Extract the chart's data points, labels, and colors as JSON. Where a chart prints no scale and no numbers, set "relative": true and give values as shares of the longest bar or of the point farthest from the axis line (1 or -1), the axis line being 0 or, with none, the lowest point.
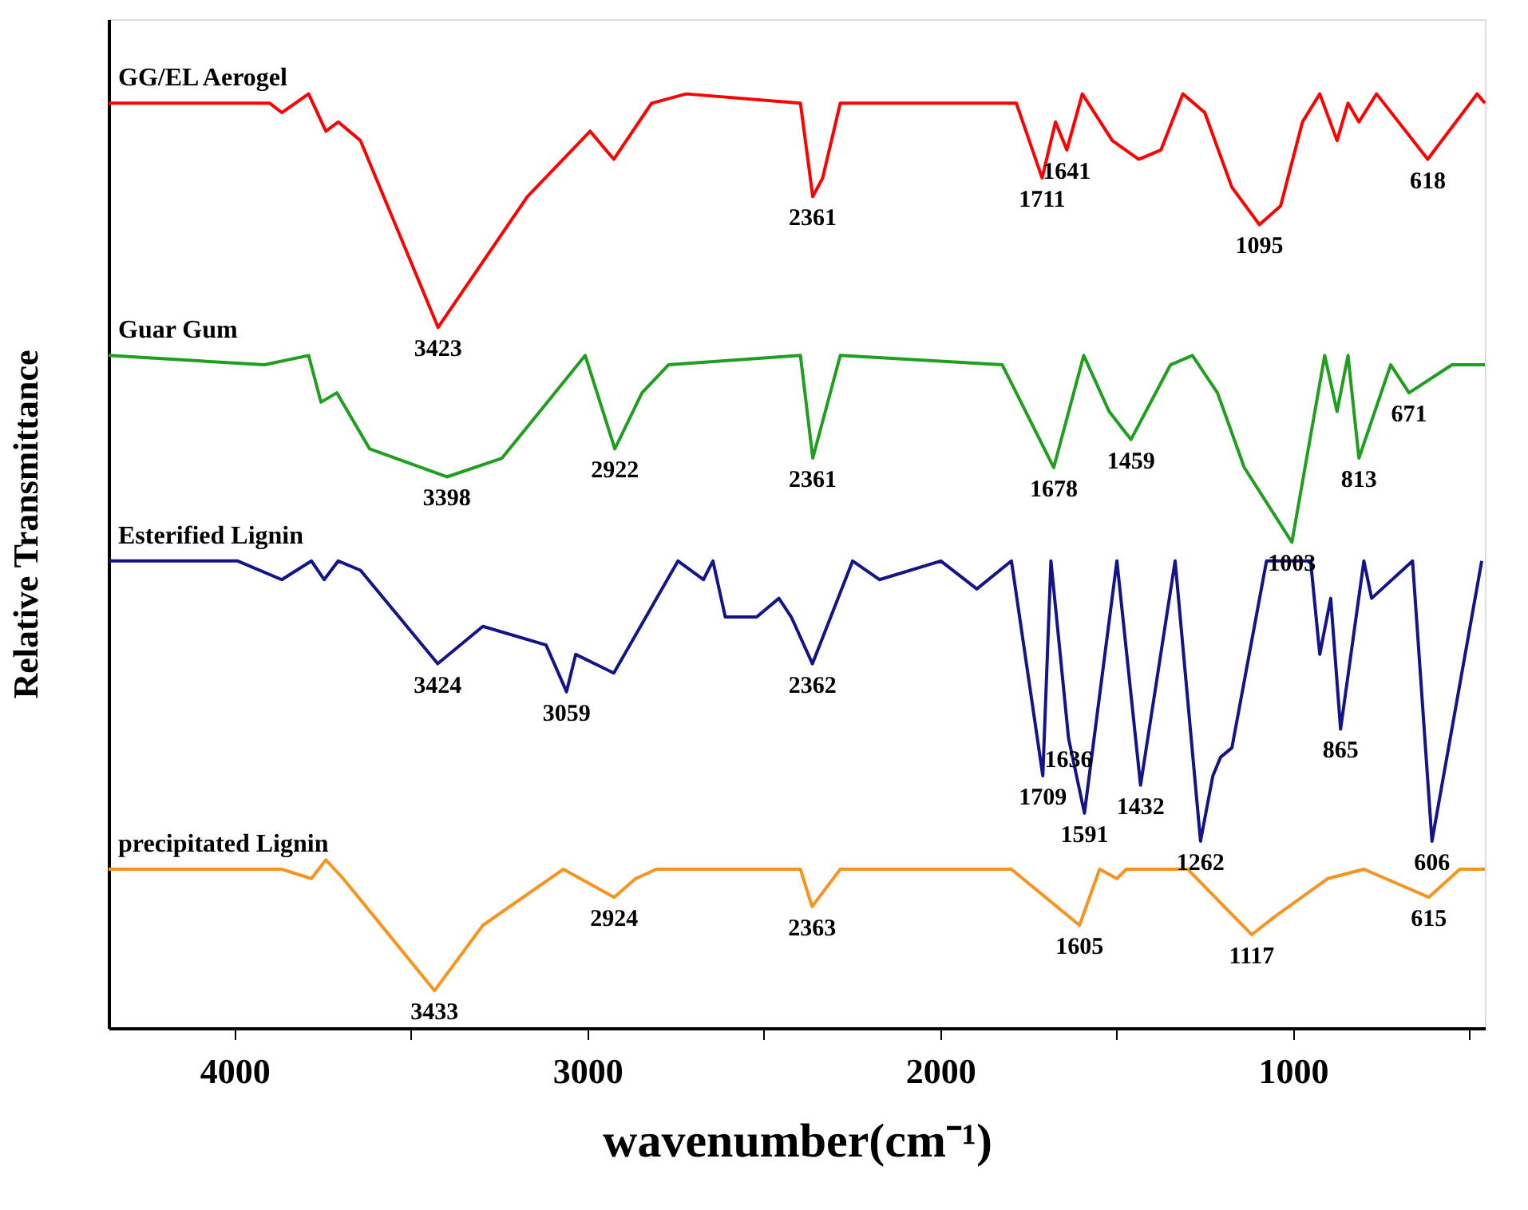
{
  "chart_data": {
    "type": "line",
    "relative": true,
    "xlabel": "wavenumber(cm⁻¹)",
    "ylabel": "Relative Transmittance",
    "xlim": [
      4357,
      456
    ],
    "xticks": [
      4000,
      {
        "value": 3500,
        "label": null
      },
      3000,
      {
        "value": 2500,
        "label": null
      },
      2000,
      {
        "value": 1500,
        "label": null
      },
      1000,
      {
        "value": 500,
        "label": null
      }
    ],
    "tick_labels": "x",
    "grid": false,
    "legend": false,
    "marker": "none",
    "line_style": "solid",
    "series": [
      {
        "name": "GG/EL Aerogel",
        "color": "#ff0000",
        "x": [
          4357,
          3900,
          3866,
          3790,
          3741,
          3706,
          3643,
          3423,
          3170,
          2992,
          2925,
          2818,
          2720,
          2396,
          2361,
          2333,
          2283,
          1784,
          1711,
          1673,
          1641,
          1597,
          1512,
          1437,
          1374,
          1312,
          1250,
          1173,
          1095,
          1035,
          973,
          924,
          875,
          844,
          813,
          763,
          618,
          478,
          456
        ],
        "values": [
          0.99,
          0.99,
          0.98,
          1.0,
          0.96,
          0.97,
          0.95,
          0.75,
          0.89,
          0.96,
          0.93,
          0.99,
          1.0,
          0.99,
          0.89,
          0.91,
          0.99,
          0.99,
          0.91,
          0.97,
          0.94,
          1.0,
          0.95,
          0.93,
          0.94,
          1.0,
          0.98,
          0.9,
          0.86,
          0.88,
          0.97,
          1.0,
          0.95,
          0.99,
          0.97,
          1.0,
          0.93,
          1.0,
          0.99
        ]
      },
      {
        "name": "Guar Gum",
        "color": "#1f9e1f",
        "x": [
          4357,
          3915,
          3790,
          3755,
          3710,
          3617,
          3398,
          3242,
          3006,
          2922,
          2845,
          2770,
          2396,
          2361,
          2283,
          1824,
          1678,
          1593,
          1521,
          1459,
          1347,
          1285,
          1214,
          1138,
          1003,
          910,
          875,
          844,
          813,
          723,
          671,
          549,
          456
        ],
        "values": [
          0.72,
          0.71,
          0.72,
          0.67,
          0.68,
          0.62,
          0.59,
          0.61,
          0.72,
          0.62,
          0.68,
          0.71,
          0.72,
          0.61,
          0.72,
          0.71,
          0.6,
          0.72,
          0.66,
          0.63,
          0.71,
          0.72,
          0.68,
          0.6,
          0.52,
          0.72,
          0.66,
          0.72,
          0.61,
          0.71,
          0.68,
          0.71,
          0.71
        ]
      },
      {
        "name": "Esterified Lignin",
        "color": "#141489",
        "x": [
          4357,
          3991,
          3866,
          3782,
          3746,
          3706,
          3643,
          3424,
          3296,
          3117,
          3059,
          3033,
          2925,
          2743,
          2671,
          2644,
          2609,
          2520,
          2457,
          2422,
          2362,
          2248,
          2172,
          1998,
          1896,
          1798,
          1709,
          1686,
          1636,
          1591,
          1499,
          1432,
          1334,
          1262,
          1227,
          1205,
          1173,
          1075,
          1013,
          950,
          924,
          893,
          865,
          799,
          777,
          661,
          606,
          465
        ],
        "values": [
          0.5,
          0.5,
          0.48,
          0.5,
          0.48,
          0.5,
          0.49,
          0.39,
          0.43,
          0.41,
          0.36,
          0.4,
          0.38,
          0.5,
          0.48,
          0.5,
          0.44,
          0.44,
          0.46,
          0.44,
          0.39,
          0.5,
          0.48,
          0.5,
          0.47,
          0.5,
          0.27,
          0.5,
          0.31,
          0.23,
          0.5,
          0.26,
          0.5,
          0.2,
          0.27,
          0.29,
          0.3,
          0.5,
          0.5,
          0.5,
          0.4,
          0.46,
          0.32,
          0.5,
          0.46,
          0.5,
          0.2,
          0.5
        ]
      },
      {
        "name": "precipitated Lignin",
        "color": "#f7931e",
        "x": [
          4357,
          3866,
          3782,
          3741,
          3692,
          3433,
          3296,
          3068,
          2924,
          2863,
          2804,
          2396,
          2363,
          2283,
          1798,
          1605,
          1548,
          1499,
          1472,
          1298,
          1117,
          1049,
          901,
          799,
          615,
          527,
          456
        ],
        "values": [
          0.17,
          0.17,
          0.16,
          0.18,
          0.16,
          0.04,
          0.11,
          0.17,
          0.14,
          0.16,
          0.17,
          0.17,
          0.13,
          0.17,
          0.17,
          0.11,
          0.17,
          0.16,
          0.17,
          0.17,
          0.1,
          0.12,
          0.16,
          0.17,
          0.14,
          0.17,
          0.17
        ]
      }
    ],
    "annotations": [
      {
        "text": "3423",
        "x": 3423,
        "y": 0.75
      },
      {
        "text": "2361",
        "x": 2361,
        "y": 0.89
      },
      {
        "text": "1711",
        "x": 1711,
        "y": 0.91
      },
      {
        "text": "1641",
        "x": 1641,
        "y": 0.94
      },
      {
        "text": "1095",
        "x": 1095,
        "y": 0.86
      },
      {
        "text": "618",
        "x": 618,
        "y": 0.93
      },
      {
        "text": "3398",
        "x": 3398,
        "y": 0.59
      },
      {
        "text": "2922",
        "x": 2922,
        "y": 0.62
      },
      {
        "text": "2361",
        "x": 2361,
        "y": 0.61
      },
      {
        "text": "1678",
        "x": 1678,
        "y": 0.6
      },
      {
        "text": "1459",
        "x": 1459,
        "y": 0.63
      },
      {
        "text": "1003",
        "x": 1003,
        "y": 0.52
      },
      {
        "text": "813",
        "x": 813,
        "y": 0.61
      },
      {
        "text": "671",
        "x": 671,
        "y": 0.68
      },
      {
        "text": "3424",
        "x": 3424,
        "y": 0.39
      },
      {
        "text": "3059",
        "x": 3059,
        "y": 0.36
      },
      {
        "text": "2362",
        "x": 2362,
        "y": 0.39
      },
      {
        "text": "1709",
        "x": 1709,
        "y": 0.27
      },
      {
        "text": "1636",
        "x": 1636,
        "y": 0.31
      },
      {
        "text": "1591",
        "x": 1591,
        "y": 0.23
      },
      {
        "text": "1432",
        "x": 1432,
        "y": 0.26
      },
      {
        "text": "1262",
        "x": 1262,
        "y": 0.2
      },
      {
        "text": "865",
        "x": 865,
        "y": 0.32
      },
      {
        "text": "606",
        "x": 606,
        "y": 0.2
      },
      {
        "text": "3433",
        "x": 3433,
        "y": 0.04
      },
      {
        "text": "2924",
        "x": 2924,
        "y": 0.14
      },
      {
        "text": "2363",
        "x": 2363,
        "y": 0.13
      },
      {
        "text": "1605",
        "x": 1605,
        "y": 0.11
      },
      {
        "text": "1117",
        "x": 1117,
        "y": 0.1
      },
      {
        "text": "615",
        "x": 615,
        "y": 0.14
      }
    ]
  }
}
